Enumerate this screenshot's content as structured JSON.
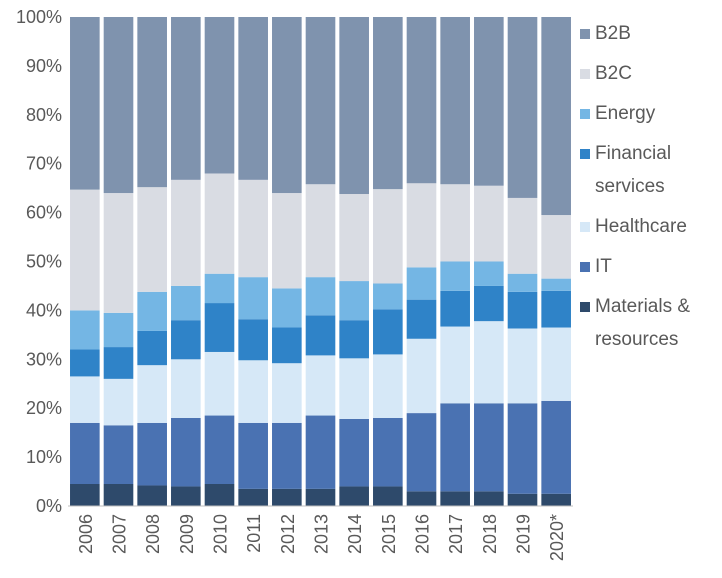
{
  "chart_data": {
    "type": "stacked_bar",
    "categories": [
      "2006",
      "2007",
      "2008",
      "2009",
      "2010",
      "2011",
      "2012",
      "2013",
      "2014",
      "2015",
      "2016",
      "2017",
      "2018",
      "2019",
      "2020*"
    ],
    "series": [
      {
        "name": "Materials & resources",
        "color": "#2e4a6b",
        "values": [
          4.5,
          4.5,
          4.2,
          4,
          4.5,
          3.5,
          3.5,
          3.5,
          4,
          4,
          3,
          3,
          3,
          2.5,
          2.5
        ]
      },
      {
        "name": "IT",
        "color": "#4a72b2",
        "values": [
          12.5,
          12,
          12.8,
          14,
          14,
          13.5,
          13.5,
          15,
          13.8,
          14,
          16,
          18,
          18,
          18.5,
          19
        ]
      },
      {
        "name": "Healthcare",
        "color": "#d6e8f7",
        "values": [
          9.5,
          9.5,
          11.8,
          12,
          13,
          12.8,
          12.2,
          12.3,
          12.4,
          13,
          15.2,
          15.7,
          16.8,
          15.3,
          15
        ]
      },
      {
        "name": "Financial services",
        "color": "#2f83c8",
        "values": [
          5.5,
          6.5,
          7,
          8,
          10,
          8.4,
          7.3,
          8.2,
          7.8,
          9.2,
          8,
          7.3,
          7.2,
          7.5,
          7.5
        ]
      },
      {
        "name": "Energy",
        "color": "#74b6e4",
        "values": [
          8,
          7,
          8,
          7,
          6,
          8.6,
          8,
          7.8,
          8,
          5.3,
          6.6,
          6,
          5,
          3.7,
          2.5
        ]
      },
      {
        "name": "B2C",
        "color": "#d9dce3",
        "values": [
          24.7,
          24.5,
          21.4,
          21.7,
          20.5,
          19.9,
          19.5,
          19,
          17.8,
          19.3,
          17.2,
          15.8,
          15.5,
          15.5,
          13
        ]
      },
      {
        "name": "B2B",
        "color": "#7f93ae",
        "values": [
          35.3,
          36,
          34.8,
          33.3,
          32,
          33.3,
          36,
          34.2,
          36.2,
          35.2,
          34,
          34.2,
          34.5,
          37,
          40.5
        ]
      }
    ],
    "ylim": [
      0,
      100
    ],
    "yticks": [
      {
        "value": 0,
        "label": "0%"
      },
      {
        "value": 10,
        "label": "10%"
      },
      {
        "value": 20,
        "label": "20%"
      },
      {
        "value": 30,
        "label": "30%"
      },
      {
        "value": 40,
        "label": "40%"
      },
      {
        "value": 50,
        "label": "50%"
      },
      {
        "value": 60,
        "label": "60%"
      },
      {
        "value": 70,
        "label": "70%"
      },
      {
        "value": 80,
        "label": "80%"
      },
      {
        "value": 90,
        "label": "90%"
      },
      {
        "value": 100,
        "label": "100%"
      }
    ]
  }
}
